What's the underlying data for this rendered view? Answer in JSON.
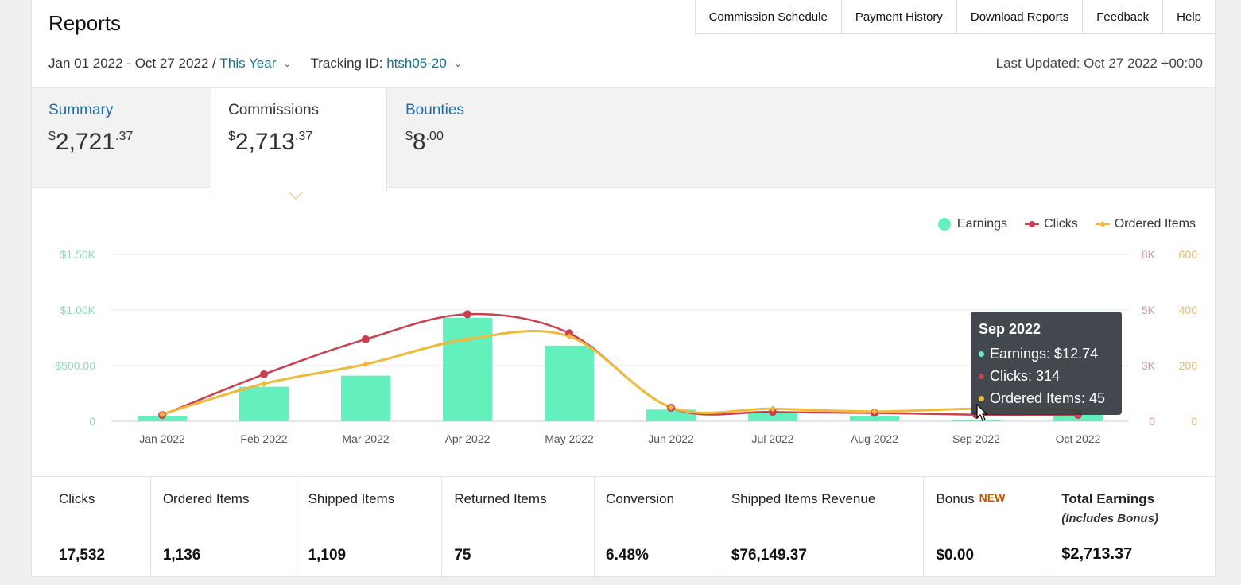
{
  "header": {
    "title": "Reports",
    "links": [
      "Commission Schedule",
      "Payment History",
      "Download Reports",
      "Feedback",
      "Help"
    ]
  },
  "filters": {
    "date_range": "Jan 01 2022 - Oct 27 2022 /",
    "period": "This Year",
    "tracking_label": "Tracking ID:",
    "tracking_id": "htsh05-20",
    "last_updated": "Last Updated: Oct 27 2022 +00:00"
  },
  "tabs": [
    {
      "label": "Summary",
      "dollars": "2,721",
      "cents": "37"
    },
    {
      "label": "Commissions",
      "dollars": "2,713",
      "cents": "37"
    },
    {
      "label": "Bounties",
      "dollars": "8",
      "cents": "00"
    }
  ],
  "currency_symbol": "$",
  "legend": {
    "earnings": "Earnings",
    "clicks": "Clicks",
    "ordered": "Ordered Items"
  },
  "colors": {
    "earnings": "#63f0bc",
    "clicks": "#c9404f",
    "ordered": "#f0b93a",
    "link": "#1d6ca8"
  },
  "chart_data": {
    "type": "bar",
    "categories": [
      "Jan 2022",
      "Feb 2022",
      "Mar 2022",
      "Apr 2022",
      "May 2022",
      "Jun 2022",
      "Jul 2022",
      "Aug 2022",
      "Sep 2022",
      "Oct 2022"
    ],
    "series": [
      {
        "name": "Earnings",
        "type": "bar",
        "axis": "left",
        "values": [
          45,
          310,
          410,
          930,
          680,
          105,
          85,
          45,
          12.74,
          60
        ]
      },
      {
        "name": "Clicks",
        "type": "line",
        "axis": "right1",
        "values": [
          300,
          2250,
          3930,
          5130,
          4220,
          650,
          450,
          400,
          314,
          300
        ]
      },
      {
        "name": "Ordered Items",
        "type": "line",
        "axis": "right2",
        "values": [
          25,
          135,
          205,
          295,
          305,
          50,
          45,
          35,
          45,
          40
        ]
      }
    ],
    "y_left": {
      "ticks": [
        "0",
        "$500.00",
        "$1.00K",
        "$1.50K"
      ],
      "ylim": [
        0,
        1500
      ]
    },
    "y_right1": {
      "ticks": [
        "0",
        "3K",
        "5K",
        "8K"
      ],
      "ylim": [
        0,
        8000
      ]
    },
    "y_right2": {
      "ticks": [
        "0",
        "200",
        "400",
        "600"
      ],
      "ylim": [
        0,
        600
      ]
    },
    "grid": true,
    "legend_position": "top-right"
  },
  "tooltip": {
    "title": "Sep 2022",
    "earnings": "Earnings: $12.74",
    "clicks": "Clicks: 314",
    "ordered": "Ordered Items: 45"
  },
  "stats": [
    {
      "label": "Clicks",
      "value": "17,532"
    },
    {
      "label": "Ordered Items",
      "value": "1,136"
    },
    {
      "label": "Shipped Items",
      "value": "1,109"
    },
    {
      "label": "Returned Items",
      "value": "75"
    },
    {
      "label": "Conversion",
      "value": "6.48%"
    },
    {
      "label": "Shipped Items Revenue",
      "value": "$76,149.37"
    },
    {
      "label": "Bonus",
      "badge": "NEW",
      "value": "$0.00"
    },
    {
      "label": "Total Earnings",
      "sublabel": "(Includes Bonus)",
      "value": "$2,713.37"
    }
  ]
}
